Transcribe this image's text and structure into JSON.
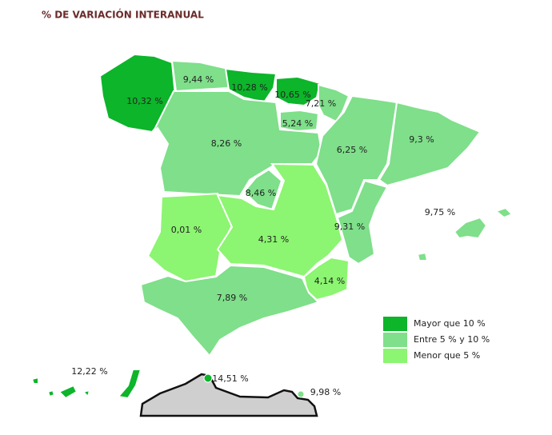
{
  "title": "% DE VARIACIÓN INTERANUAL",
  "regions": [
    {
      "label": "10,32 %",
      "color": "#0cb52a"
    },
    {
      "label": "9,44 %",
      "color": "#7fdf8a"
    },
    {
      "label": "10,28 %",
      "color": "#0cb52a"
    },
    {
      "label": "10,65 %",
      "color": "#0cb52a"
    },
    {
      "label": "7,21 %",
      "color": "#7fdf8a"
    },
    {
      "label": "5,24 %",
      "color": "#7fdf8a"
    },
    {
      "label": "8,26 %",
      "color": "#7fdf8a"
    },
    {
      "label": "6,25 %",
      "color": "#7fdf8a"
    },
    {
      "label": "9,3 %",
      "color": "#7fdf8a"
    },
    {
      "label": "8,46 %",
      "color": "#7fdf8a"
    },
    {
      "label": "0,01 %",
      "color": "#8cf571"
    },
    {
      "label": "4,31 %",
      "color": "#8cf571"
    },
    {
      "label": "9,31 %",
      "color": "#7fdf8a"
    },
    {
      "label": "4,14 %",
      "color": "#8cf571"
    },
    {
      "label": "7,89 %",
      "color": "#7fdf8a"
    },
    {
      "label": "9,75 %",
      "color": "#7fdf8a"
    },
    {
      "label": "12,22 %",
      "color": "#0cb52a"
    },
    {
      "label": "14,51 %",
      "color": "#0cb52a"
    },
    {
      "label": "9,98 %",
      "color": "#7fdf8a"
    }
  ],
  "legend": [
    {
      "label": "Mayor que 10 %",
      "color": "#0cb52a"
    },
    {
      "label": "Entre 5 % y 10 %",
      "color": "#7fdf8a"
    },
    {
      "label": "Menor que 5 %",
      "color": "#8cf571"
    }
  ]
}
